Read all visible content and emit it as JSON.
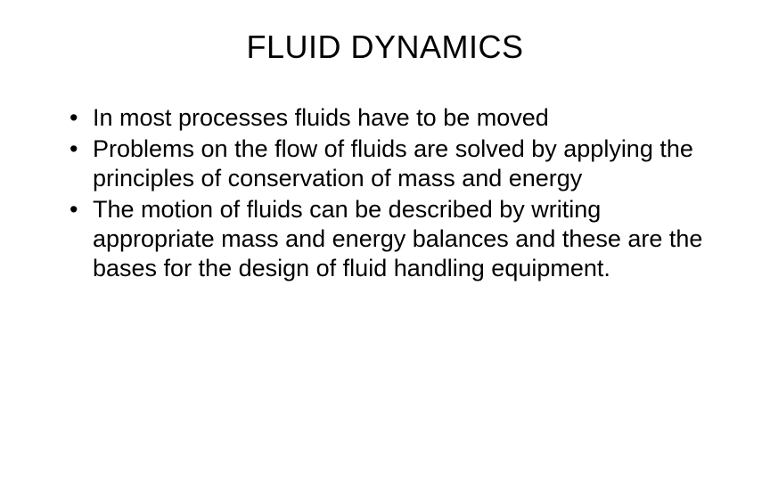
{
  "title": "FLUID DYNAMICS",
  "bullets": [
    "In most processes fluids have to be moved",
    " Problems on the flow of fluids are solved by applying the principles of conservation of mass and energy",
    "The motion of fluids can be described by writing appropriate mass and energy balances and these are the bases for the design of fluid handling equipment."
  ],
  "colors": {
    "background": "#ffffff",
    "text": "#000000"
  },
  "typography": {
    "title_fontsize": 36,
    "body_fontsize": 27,
    "font_family": "Arial"
  }
}
